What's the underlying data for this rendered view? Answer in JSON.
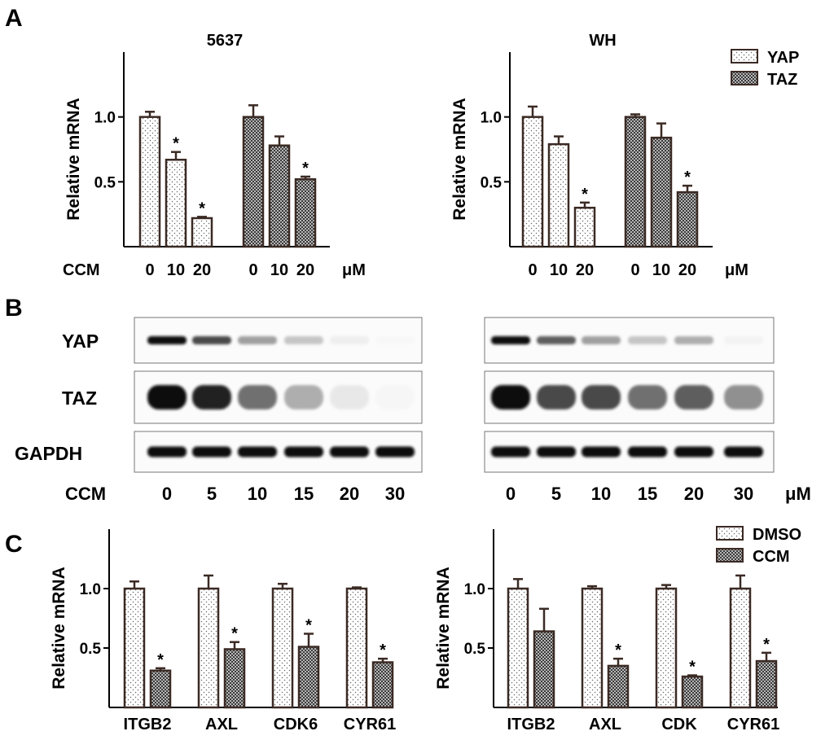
{
  "panel_labels": [
    "A",
    "B",
    "C"
  ],
  "legend_A": [
    {
      "label": "YAP",
      "pattern": "dots"
    },
    {
      "label": "TAZ",
      "pattern": "checks"
    }
  ],
  "legend_C": [
    {
      "label": "DMSO",
      "pattern": "dots"
    },
    {
      "label": "CCM",
      "pattern": "checks"
    }
  ],
  "chart_data": [
    {
      "type": "bar",
      "panel": "A",
      "title": "5637",
      "ylabel": "Relative mRNA",
      "ylim": [
        0,
        1.5
      ],
      "yticks": [
        "0.5",
        "1.0"
      ],
      "row_label": "CCM",
      "unit": "μM",
      "groups": [
        {
          "series": "YAP",
          "pattern": "dots",
          "bars": [
            {
              "x": "0",
              "value": 1.0,
              "err": 0.04,
              "sig": ""
            },
            {
              "x": "10",
              "value": 0.67,
              "err": 0.06,
              "sig": "*"
            },
            {
              "x": "20",
              "value": 0.22,
              "err": 0.01,
              "sig": "*"
            }
          ]
        },
        {
          "series": "TAZ",
          "pattern": "checks",
          "bars": [
            {
              "x": "0",
              "value": 1.0,
              "err": 0.09,
              "sig": ""
            },
            {
              "x": "10",
              "value": 0.78,
              "err": 0.07,
              "sig": ""
            },
            {
              "x": "20",
              "value": 0.52,
              "err": 0.02,
              "sig": "*"
            }
          ]
        }
      ]
    },
    {
      "type": "bar",
      "panel": "A",
      "title": "WH",
      "ylabel": "Relative mRNA",
      "ylim": [
        0,
        1.5
      ],
      "yticks": [
        "0.5",
        "1.0"
      ],
      "row_label": "",
      "unit": "μM",
      "groups": [
        {
          "series": "YAP",
          "pattern": "dots",
          "bars": [
            {
              "x": "0",
              "value": 1.0,
              "err": 0.08,
              "sig": ""
            },
            {
              "x": "10",
              "value": 0.79,
              "err": 0.06,
              "sig": ""
            },
            {
              "x": "20",
              "value": 0.3,
              "err": 0.04,
              "sig": "*"
            }
          ]
        },
        {
          "series": "TAZ",
          "pattern": "checks",
          "bars": [
            {
              "x": "0",
              "value": 1.0,
              "err": 0.02,
              "sig": ""
            },
            {
              "x": "10",
              "value": 0.84,
              "err": 0.11,
              "sig": ""
            },
            {
              "x": "20",
              "value": 0.42,
              "err": 0.05,
              "sig": "*"
            }
          ]
        }
      ]
    },
    {
      "type": "bar",
      "panel": "C",
      "title": "",
      "ylabel": "Relative mRNA",
      "ylim": [
        0,
        1.5
      ],
      "yticks": [
        "0.5",
        "1.0"
      ],
      "groups": [
        {
          "label": "ITGB2",
          "bars": [
            {
              "series": "DMSO",
              "pattern": "dots",
              "value": 1.0,
              "err": 0.06,
              "sig": ""
            },
            {
              "series": "CCM",
              "pattern": "checks",
              "value": 0.31,
              "err": 0.02,
              "sig": "*"
            }
          ]
        },
        {
          "label": "AXL",
          "bars": [
            {
              "series": "DMSO",
              "pattern": "dots",
              "value": 1.0,
              "err": 0.11,
              "sig": ""
            },
            {
              "series": "CCM",
              "pattern": "checks",
              "value": 0.49,
              "err": 0.06,
              "sig": "*"
            }
          ]
        },
        {
          "label": "CDK6",
          "bars": [
            {
              "series": "DMSO",
              "pattern": "dots",
              "value": 1.0,
              "err": 0.04,
              "sig": ""
            },
            {
              "series": "CCM",
              "pattern": "checks",
              "value": 0.51,
              "err": 0.11,
              "sig": "*"
            }
          ]
        },
        {
          "label": "CYR61",
          "bars": [
            {
              "series": "DMSO",
              "pattern": "dots",
              "value": 1.0,
              "err": 0.01,
              "sig": ""
            },
            {
              "series": "CCM",
              "pattern": "checks",
              "value": 0.38,
              "err": 0.03,
              "sig": "*"
            }
          ]
        }
      ]
    },
    {
      "type": "bar",
      "panel": "C",
      "title": "",
      "ylabel": "Relative mRNA",
      "ylim": [
        0,
        1.5
      ],
      "yticks": [
        "0.5",
        "1.0"
      ],
      "groups": [
        {
          "label": "ITGB2",
          "bars": [
            {
              "series": "DMSO",
              "pattern": "dots",
              "value": 1.0,
              "err": 0.08,
              "sig": ""
            },
            {
              "series": "CCM",
              "pattern": "checks",
              "value": 0.64,
              "err": 0.19,
              "sig": ""
            }
          ]
        },
        {
          "label": "AXL",
          "bars": [
            {
              "series": "DMSO",
              "pattern": "dots",
              "value": 1.0,
              "err": 0.02,
              "sig": ""
            },
            {
              "series": "CCM",
              "pattern": "checks",
              "value": 0.35,
              "err": 0.06,
              "sig": "*"
            }
          ]
        },
        {
          "label": "CDK",
          "bars": [
            {
              "series": "DMSO",
              "pattern": "dots",
              "value": 1.0,
              "err": 0.03,
              "sig": ""
            },
            {
              "series": "CCM",
              "pattern": "checks",
              "value": 0.26,
              "err": 0.01,
              "sig": "*"
            }
          ]
        },
        {
          "label": "CYR61",
          "bars": [
            {
              "series": "DMSO",
              "pattern": "dots",
              "value": 1.0,
              "err": 0.11,
              "sig": ""
            },
            {
              "series": "CCM",
              "pattern": "checks",
              "value": 0.39,
              "err": 0.07,
              "sig": "*"
            }
          ]
        }
      ]
    }
  ],
  "western_blot": {
    "row_labels": [
      "YAP",
      "TAZ",
      "GAPDH"
    ],
    "lane_axis_label": "CCM",
    "lanes": [
      "0",
      "5",
      "10",
      "15",
      "20",
      "30"
    ],
    "unit": "μM",
    "left_intensity": {
      "YAP": [
        1.0,
        0.85,
        0.6,
        0.45,
        0.2,
        0.05
      ],
      "TAZ": [
        1.0,
        0.95,
        0.75,
        0.55,
        0.25,
        0.1
      ],
      "GAPDH": [
        1.0,
        1.0,
        1.0,
        1.0,
        1.0,
        1.0
      ]
    },
    "right_intensity": {
      "YAP": [
        1.0,
        0.8,
        0.6,
        0.45,
        0.55,
        0.15
      ],
      "TAZ": [
        1.0,
        0.85,
        0.85,
        0.75,
        0.8,
        0.65
      ],
      "GAPDH": [
        1.0,
        1.0,
        1.0,
        1.0,
        1.0,
        1.0
      ]
    }
  }
}
